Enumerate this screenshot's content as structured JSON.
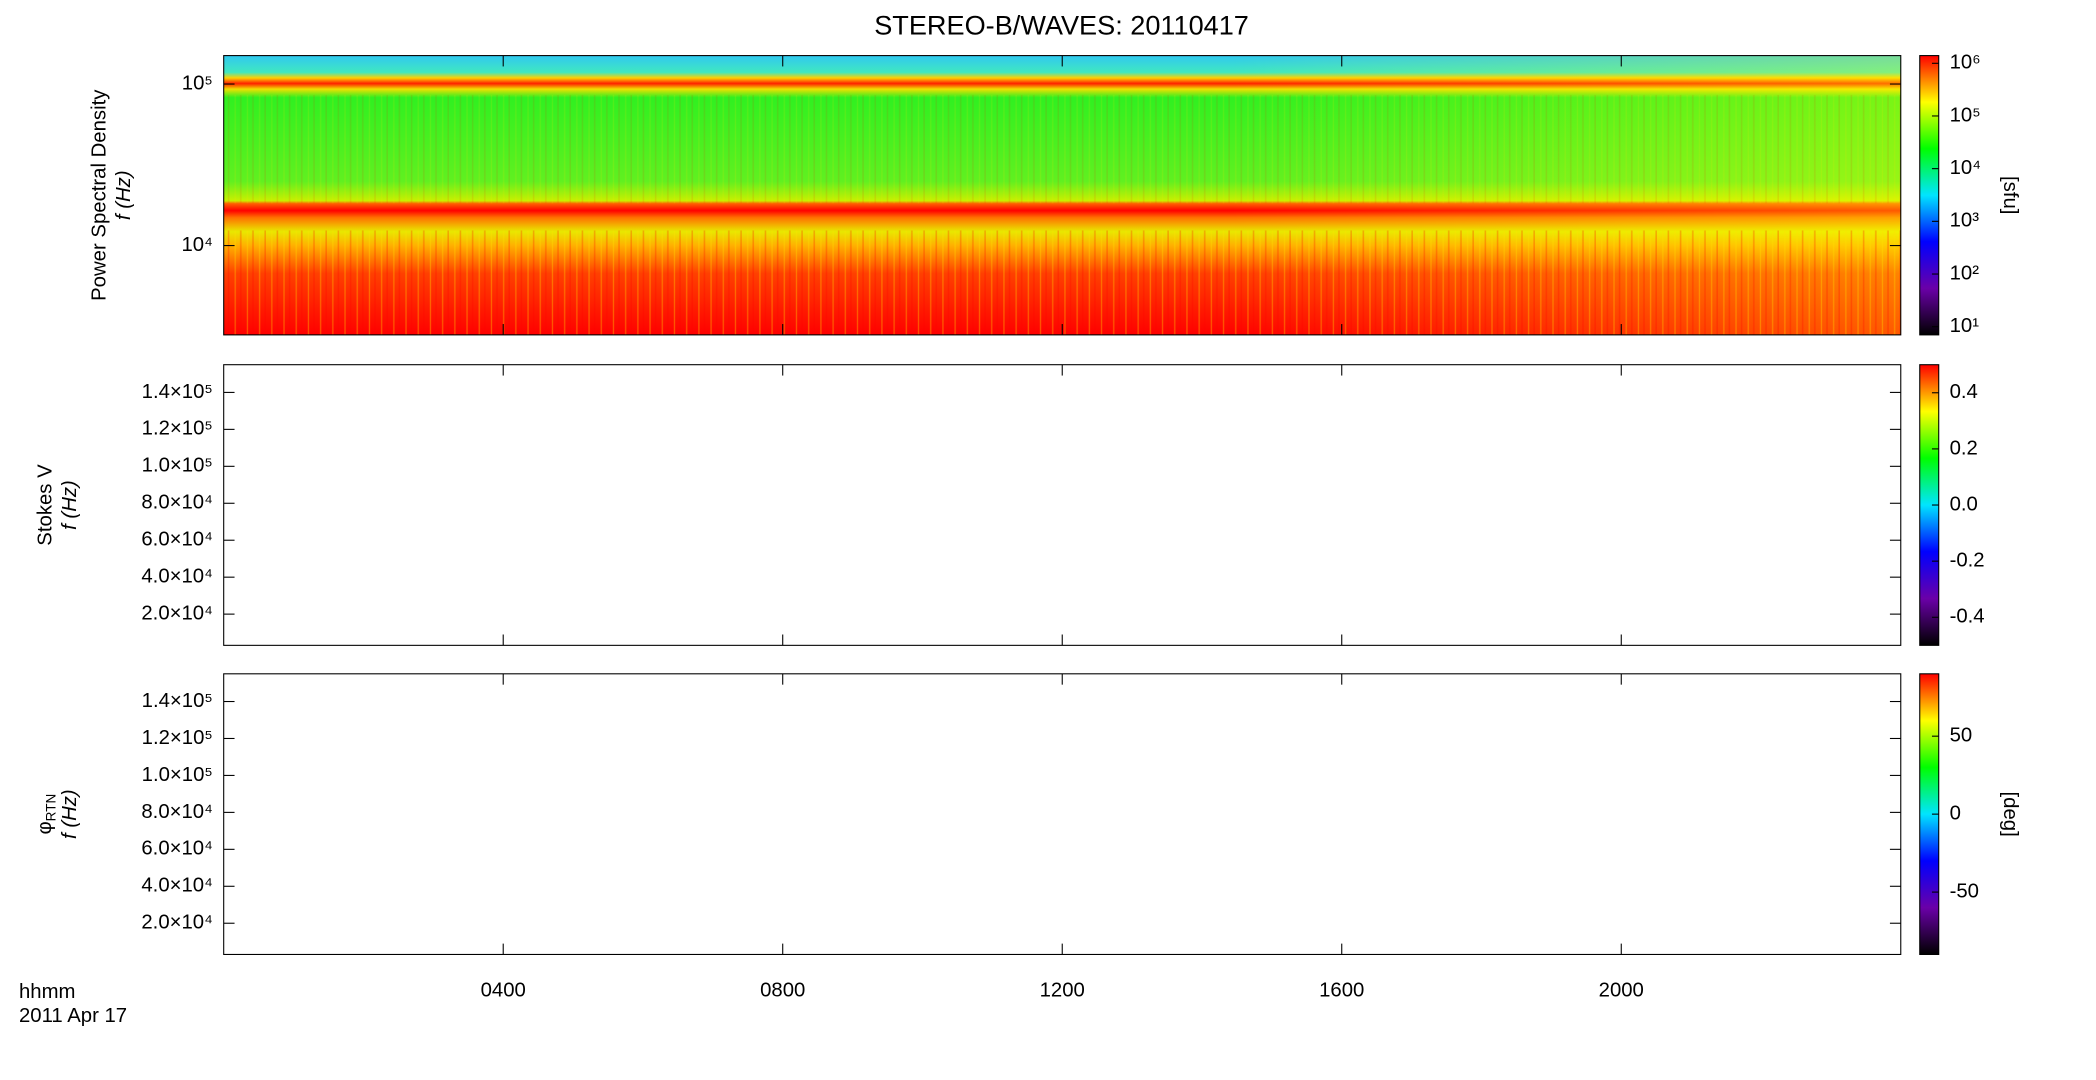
{
  "chart_data": [
    {
      "type": "spectrogram",
      "title": "STEREO-B/WAVES: 20110417",
      "ylabel": "Power Spectral Density",
      "ylabel2": "f (Hz)",
      "ylog": true,
      "ylim": [
        2800,
        150000
      ],
      "yticks": [
        {
          "value": 10000,
          "label": "10⁴"
        },
        {
          "value": 100000,
          "label": "10⁵"
        }
      ],
      "colorbar_label": "[sfu]",
      "clog": true,
      "clim": [
        7,
        1400000
      ],
      "cticks": [
        {
          "value": 10,
          "label": "10¹"
        },
        {
          "value": 100,
          "label": "10²"
        },
        {
          "value": 1000,
          "label": "10³"
        },
        {
          "value": 10000,
          "label": "10⁴"
        },
        {
          "value": 100000,
          "label": "10⁵"
        },
        {
          "value": 1000000,
          "label": "10⁶"
        }
      ],
      "colormap": [
        "#000000",
        "#6a00a8",
        "#0000ff",
        "#00e5ff",
        "#00ff00",
        "#ffff00",
        "#ff0000"
      ]
    },
    {
      "type": "spectrogram",
      "ylabel": "Stokes V",
      "ylabel2": "f (Hz)",
      "ylog": false,
      "ylim": [
        3100,
        155000
      ],
      "yticks": [
        {
          "value": 20000,
          "label": "2.0×10⁴"
        },
        {
          "value": 40000,
          "label": "4.0×10⁴"
        },
        {
          "value": 60000,
          "label": "6.0×10⁴"
        },
        {
          "value": 80000,
          "label": "8.0×10⁴"
        },
        {
          "value": 100000,
          "label": "1.0×10⁵"
        },
        {
          "value": 120000,
          "label": "1.2×10⁵"
        },
        {
          "value": 140000,
          "label": "1.4×10⁵"
        }
      ],
      "clog": false,
      "clim": [
        -0.5,
        0.5
      ],
      "cticks": [
        -0.4,
        -0.2,
        {
          "value": 0,
          "label": "0.0"
        },
        0.2,
        0.4
      ],
      "colormap": [
        "#000000",
        "#6a00a8",
        "#0000ff",
        "#00e5ff",
        "#00ff00",
        "#ffff00",
        "#ff0000"
      ]
    },
    {
      "type": "spectrogram",
      "ylabel_symbol": "φ",
      "ylabel_subscript": "RTN",
      "ylabel2": "f (Hz)",
      "ylog": false,
      "ylim": [
        3100,
        155000
      ],
      "yticks": [
        {
          "value": 20000,
          "label": "2.0×10⁴"
        },
        {
          "value": 40000,
          "label": "4.0×10⁴"
        },
        {
          "value": 60000,
          "label": "6.0×10⁴"
        },
        {
          "value": 80000,
          "label": "8.0×10⁴"
        },
        {
          "value": 100000,
          "label": "1.0×10⁵"
        },
        {
          "value": 120000,
          "label": "1.2×10⁵"
        },
        {
          "value": 140000,
          "label": "1.4×10⁵"
        }
      ],
      "colorbar_label": "[deg]",
      "clog": false,
      "clim": [
        -90,
        90
      ],
      "cticks": [
        -50,
        0,
        50
      ],
      "colormap": [
        "#000000",
        "#6a00a8",
        "#0000ff",
        "#00e5ff",
        "#00ff00",
        "#ffff00",
        "#ff0000"
      ],
      "xlabel": "hhmm",
      "date": "2011 Apr 17",
      "xlim": [
        0,
        24
      ],
      "xticks": [
        {
          "value": 4,
          "label": "0400"
        },
        {
          "value": 8,
          "label": "0800"
        },
        {
          "value": 12,
          "label": "1200"
        },
        {
          "value": 16,
          "label": "1600"
        },
        {
          "value": 20,
          "label": "2000"
        }
      ]
    }
  ]
}
